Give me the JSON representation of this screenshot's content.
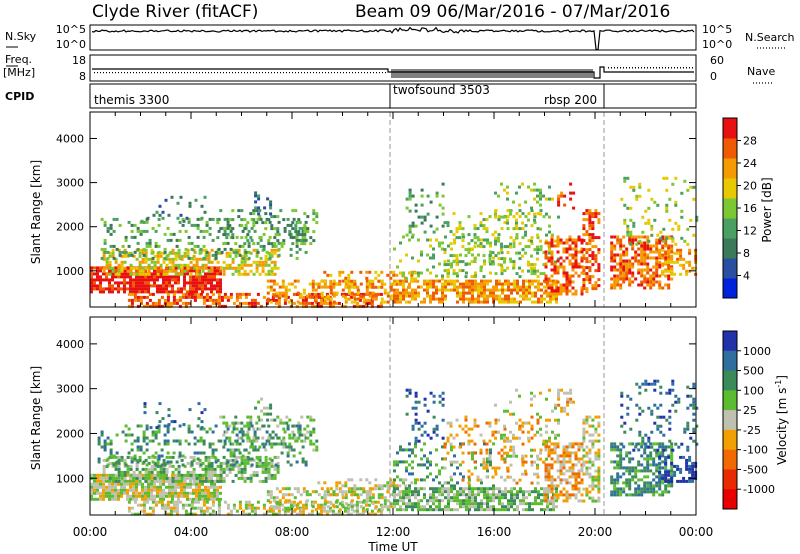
{
  "header": {
    "station": "Clyde River (fitACF)",
    "beam_range": "Beam 09  06/Mar/2016 - 07/Mar/2016"
  },
  "strip_labels": {
    "nsky": "N.Sky",
    "nsky_ticks": [
      "10^5",
      "10^0"
    ],
    "nsearch": "N.Search",
    "nsearch_ticks": [
      "10^5",
      "10^0"
    ],
    "freq_line1": "Freq.",
    "freq_line2": "[MHz]",
    "freq_ticks": [
      "18",
      "8"
    ],
    "nave": "Nave",
    "nave_ticks": [
      "60",
      "0"
    ],
    "cpid": "CPID",
    "cpid_segments": [
      "themis 3300",
      "twofsound 3503",
      "rbsp 200"
    ]
  },
  "colors": {
    "power": [
      "#0022dd",
      "#2a4fa0",
      "#3a7a5a",
      "#4aa060",
      "#7cc832",
      "#e8c800",
      "#f59a00",
      "#f05a00",
      "#e81010"
    ],
    "velocity": [
      "#2233aa",
      "#2e6fa0",
      "#3a8a5a",
      "#5cbc30",
      "#c0c0b0",
      "#f0a000",
      "#f06a00",
      "#e82a00",
      "#e80000"
    ]
  },
  "chart_data": [
    {
      "type": "heatmap",
      "title": "Power",
      "xlabel": "Time UT",
      "ylabel": "Slant Range [km]",
      "x_tick_labels": [
        "00:00",
        "04:00",
        "08:00",
        "12:00",
        "16:00",
        "20:00",
        "00:00"
      ],
      "xlim_hours": [
        0,
        24
      ],
      "y_ticks": [
        "1000",
        "2000",
        "3000",
        "4000"
      ],
      "ylim": [
        180,
        4600
      ],
      "colorbar": {
        "label": "Power [dB]",
        "ticks": [
          "4",
          "8",
          "12",
          "16",
          "20",
          "24",
          "28"
        ],
        "range": [
          0,
          32
        ]
      }
    },
    {
      "type": "heatmap",
      "title": "Velocity",
      "xlabel": "Time UT",
      "ylabel": "Slant Range [km]",
      "x_tick_labels": [
        "00:00",
        "04:00",
        "08:00",
        "12:00",
        "16:00",
        "20:00",
        "00:00"
      ],
      "xlim_hours": [
        0,
        24
      ],
      "y_ticks": [
        "1000",
        "2000",
        "3000",
        "4000"
      ],
      "ylim": [
        180,
        4600
      ],
      "colorbar": {
        "label": "Velocity [m s",
        "label_sup": "-1",
        "label_end": "]",
        "ticks": [
          "1000",
          "500",
          "100",
          "25",
          "-25",
          "-100",
          "-500",
          "-1000"
        ]
      }
    }
  ]
}
